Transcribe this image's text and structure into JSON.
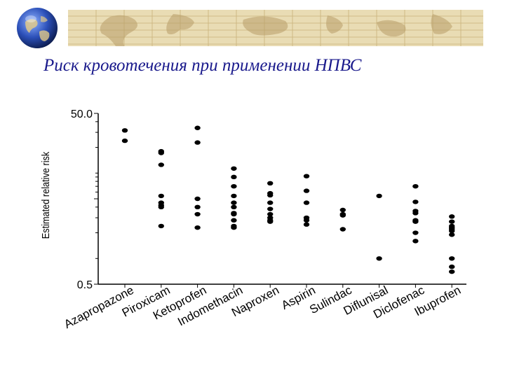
{
  "slide": {
    "title": "Риск кровотечения при применении НПВС"
  },
  "colors": {
    "banner": "#e9dcb4",
    "banner_lines": "#c9b27a",
    "title": "#1a1a8c",
    "points": "#000000"
  },
  "icons": {
    "header": "globe-icon",
    "banner": "world-map-banner"
  },
  "chart_data": {
    "type": "scatter",
    "title": "",
    "xlabel": "",
    "ylabel": "Estimated relative risk",
    "yscale": "log",
    "ylim": [
      0.5,
      50.0
    ],
    "yticks": [
      {
        "value": 50.0,
        "label": "50.0"
      },
      {
        "value": 0.5,
        "label": "0.5"
      }
    ],
    "categories": [
      "Azapropazone",
      "Piroxicam",
      "Ketoprofen",
      "Indomethacin",
      "Naproxen",
      "Aspirin",
      "Sulindac",
      "Diflunisal",
      "Diclofenac",
      "Ibuprofen"
    ],
    "points": [
      [
        31.6,
        23.9
      ],
      [
        18.0,
        17.2,
        12.5,
        5.4,
        4.5,
        4.2,
        4.0,
        2.4
      ],
      [
        33.8,
        22.8,
        5.0,
        4.0,
        3.3,
        2.3
      ],
      [
        11.3,
        9.0,
        7.0,
        5.4,
        4.5,
        4.0,
        3.4,
        3.3,
        2.8,
        2.4,
        2.3
      ],
      [
        7.6,
        5.8,
        5.5,
        4.5,
        3.8,
        3.3,
        3.0,
        2.8,
        2.7
      ],
      [
        9.2,
        6.2,
        4.5,
        3.0,
        2.8,
        2.5
      ],
      [
        3.7,
        3.3,
        3.2,
        2.2
      ],
      [
        5.4,
        1.0
      ],
      [
        7.0,
        4.6,
        3.6,
        3.4,
        2.8,
        2.7,
        2.0,
        1.6
      ],
      [
        3.1,
        2.7,
        2.4,
        2.3,
        2.2,
        2.1,
        1.9,
        1.0,
        0.8,
        0.7
      ]
    ],
    "grid": false,
    "legend": "none"
  }
}
